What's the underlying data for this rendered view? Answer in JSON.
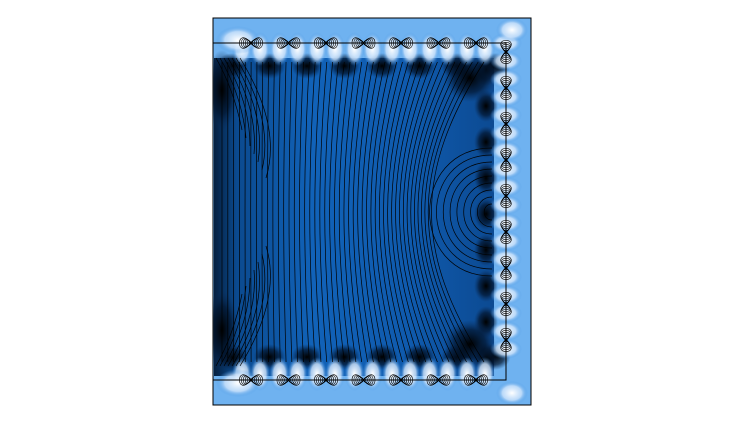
{
  "figure": {
    "kind": "field-line-plot",
    "colormap": "white-to-blue-to-black",
    "colors": {
      "background": "#ffffff",
      "frame": "#000000",
      "field_lines": "#000000",
      "light": "#ffffff",
      "mid": "#1565c0",
      "dark": "#0a2a55",
      "black": "#000000"
    }
  }
}
